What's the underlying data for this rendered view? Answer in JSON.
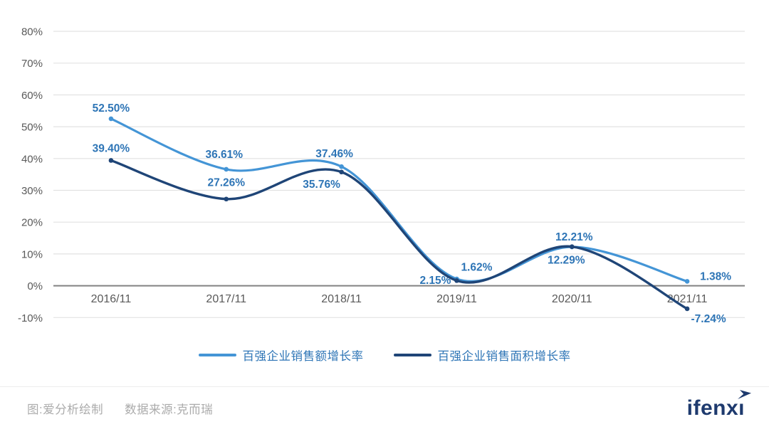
{
  "chart_data": {
    "type": "line",
    "categories": [
      "2016/11",
      "2017/11",
      "2018/11",
      "2019/11",
      "2020/11",
      "2021/11"
    ],
    "series": [
      {
        "name": "百强企业销售额增长率",
        "color": "#4495D6",
        "values": [
          52.5,
          36.61,
          37.46,
          2.15,
          12.21,
          1.38
        ]
      },
      {
        "name": "百强企业销售面积增长率",
        "color": "#1F4577",
        "values": [
          39.4,
          27.26,
          35.76,
          1.62,
          12.29,
          -7.24
        ]
      }
    ],
    "data_labels": [
      [
        "52.50%",
        "36.61%",
        "37.46%",
        "2.15%",
        "12.21%",
        "1.38%"
      ],
      [
        "39.40%",
        "27.26%",
        "35.76%",
        "1.62%",
        "12.29%",
        "-7.24%"
      ]
    ],
    "title": "",
    "xlabel": "",
    "ylabel": "",
    "ylim": [
      -10,
      80
    ],
    "y_tick_step": 10,
    "y_tick_labels": [
      "80%",
      "70%",
      "60%",
      "50%",
      "40%",
      "30%",
      "20%",
      "10%",
      "0%",
      "-10%"
    ],
    "grid": true,
    "smooth_lines": true,
    "legend_position": "bottom",
    "colors": {
      "data_label": "#2E75B6",
      "axis_text": "#595959",
      "gridline": "#E2E2E2",
      "zero_line": "#828282"
    }
  },
  "footer": {
    "credit": "图:爱分析绘制",
    "source": "数据来源:克而瑞",
    "logo": "ifenxi",
    "logo_color": "#1E3A6E",
    "text_color": "#ABABAB"
  }
}
